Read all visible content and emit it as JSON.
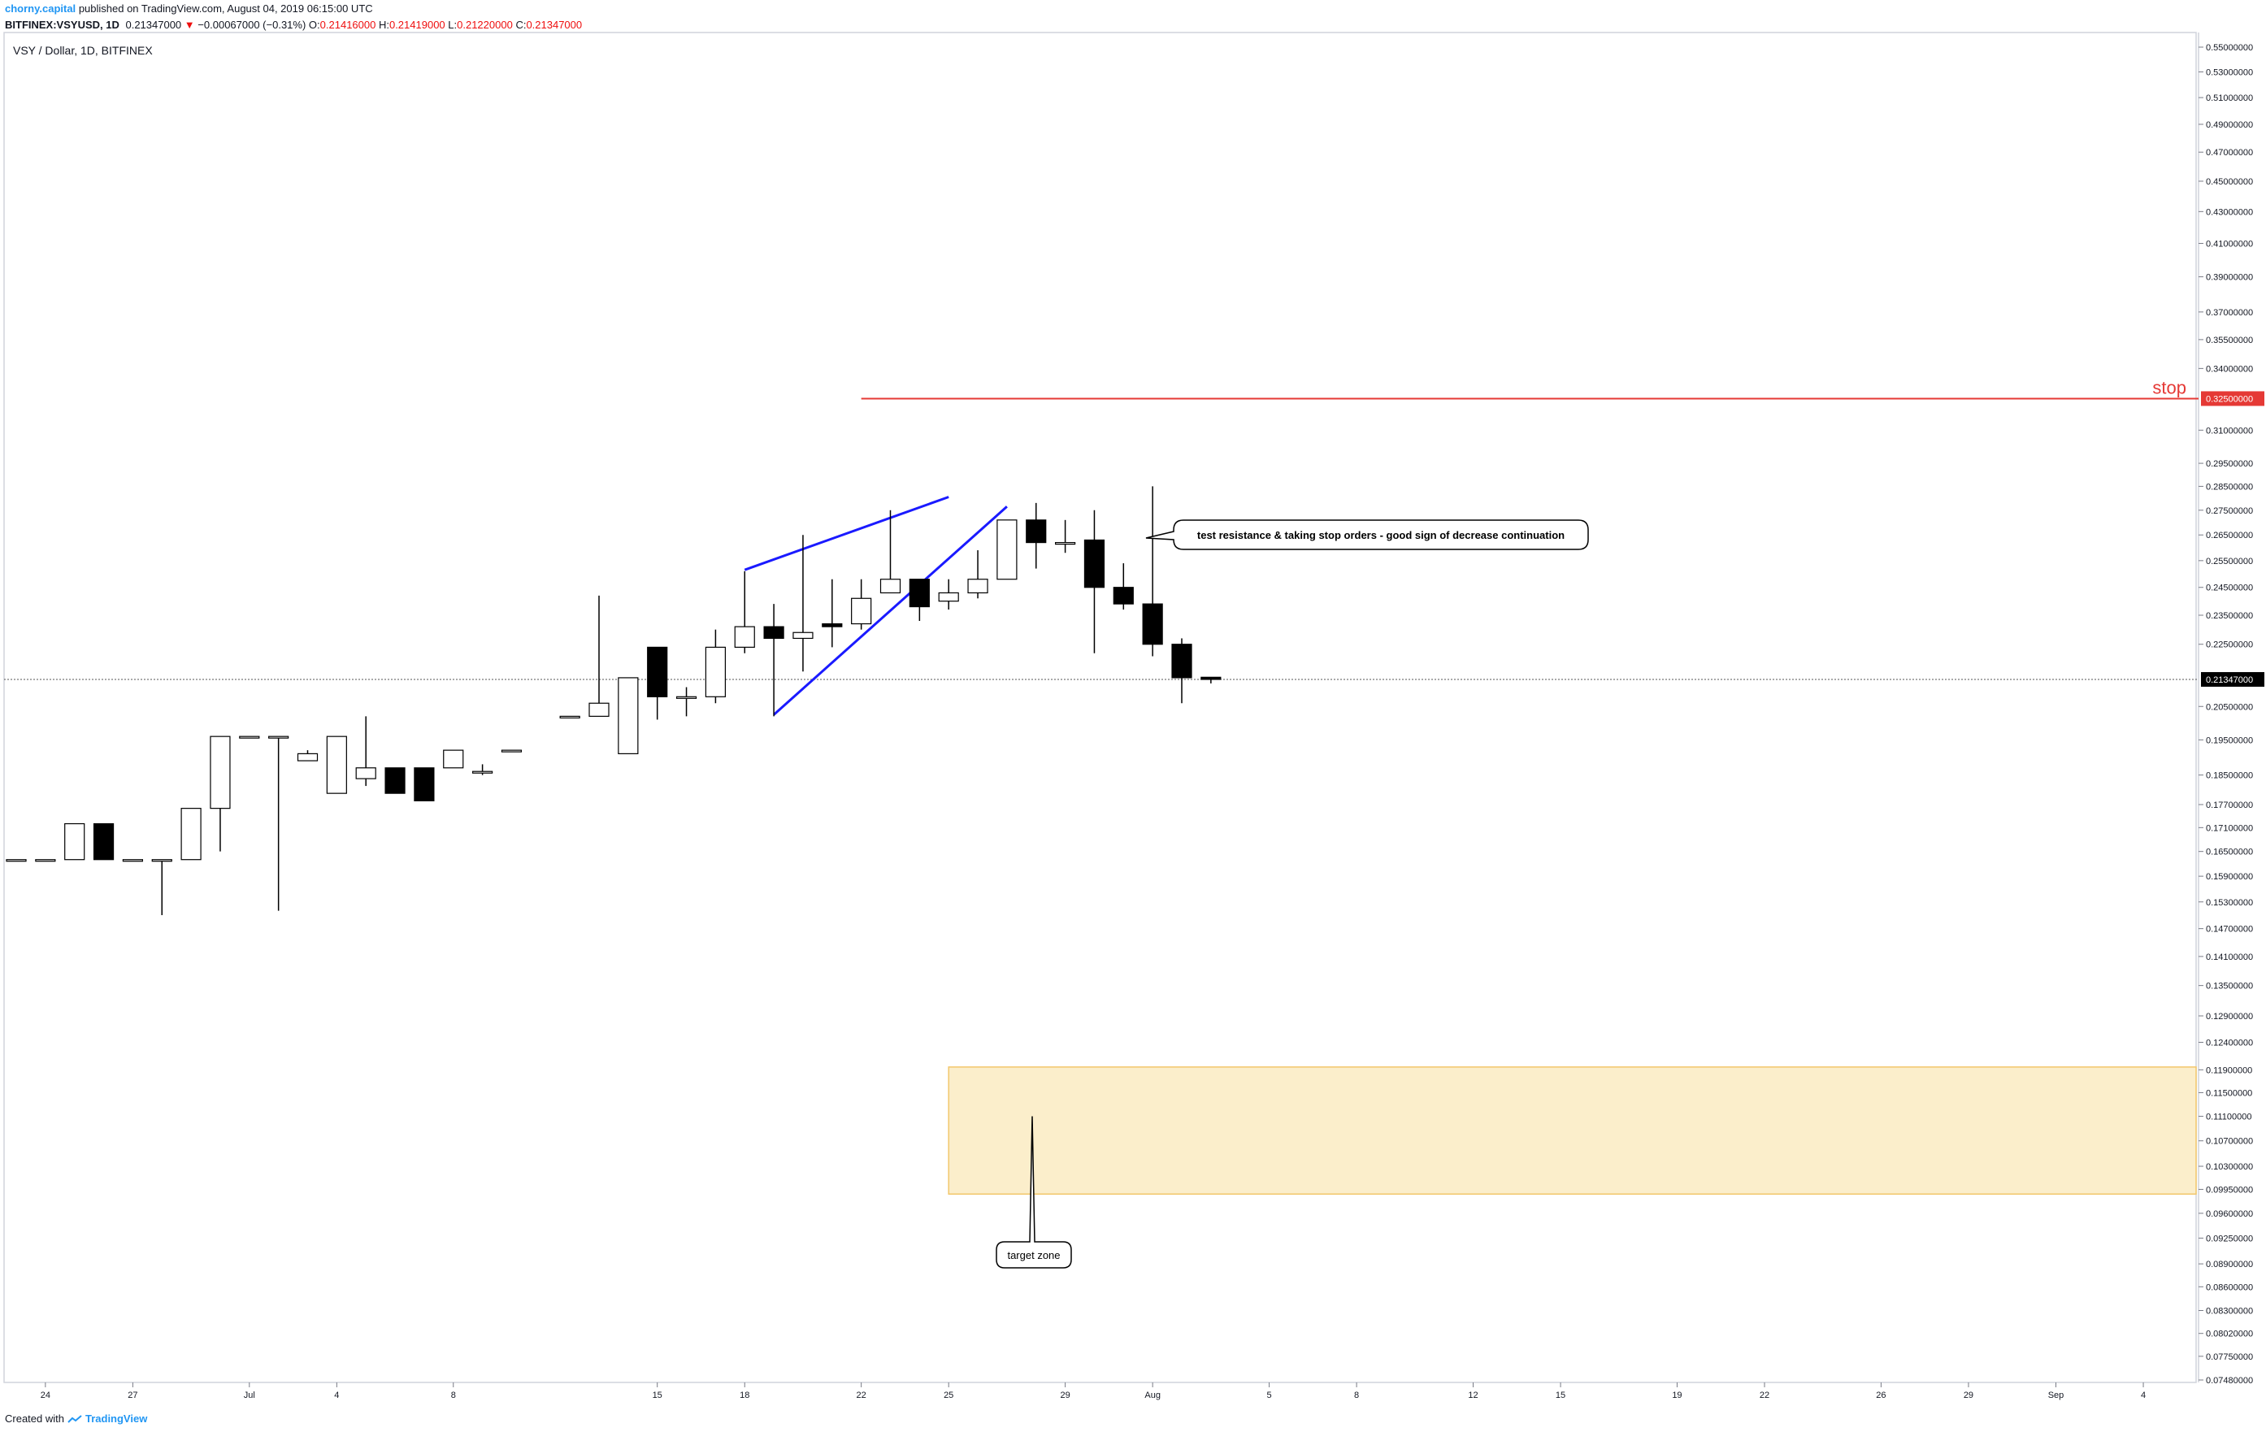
{
  "header": {
    "author": "chorny.capital",
    "published_text": "published on TradingView.com, August 04, 2019 06:15:00 UTC",
    "symbol": "BITFINEX:VSYUSD, 1D",
    "last": "0.21347000",
    "change_arrow": "▼",
    "change": "−0.00067000 (−0.31%)",
    "o_label": "O:",
    "o_value": "0.21416000",
    "h_label": "H:",
    "h_value": "0.21419000",
    "l_label": "L:",
    "l_value": "0.21220000",
    "c_label": "C:",
    "c_value": "0.21347000"
  },
  "footer": {
    "created_with": "Created with",
    "brand": "TradingView"
  },
  "colors": {
    "stop_line": "#e53935",
    "trend_line": "#1a1aff",
    "target_fill": "#fbeecb",
    "target_border": "#f2c76b",
    "price_tag_bg": "#000000"
  },
  "chart_data": {
    "type": "candlestick",
    "title": "VSY / Dollar, 1D, BITFINEX",
    "y_tick_labels": [
      "0.55000000",
      "0.53000000",
      "0.51000000",
      "0.49000000",
      "0.47000000",
      "0.45000000",
      "0.43000000",
      "0.41000000",
      "0.39000000",
      "0.37000000",
      "0.35500000",
      "0.34000000",
      "0.31000000",
      "0.29500000",
      "0.28500000",
      "0.27500000",
      "0.26500000",
      "0.25500000",
      "0.24500000",
      "0.23500000",
      "0.22500000",
      "0.20500000",
      "0.19500000",
      "0.18500000",
      "0.17700000",
      "0.17100000",
      "0.16500000",
      "0.15900000",
      "0.15300000",
      "0.14700000",
      "0.14100000",
      "0.13500000",
      "0.12900000",
      "0.12400000",
      "0.11900000",
      "0.11500000",
      "0.11100000",
      "0.10700000",
      "0.10300000",
      "0.09950000",
      "0.09600000",
      "0.09250000",
      "0.08900000",
      "0.08600000",
      "0.08300000",
      "0.08020000",
      "0.07750000",
      "0.07480000"
    ],
    "x_tick_labels": [
      "24",
      "27",
      "Jul",
      "4",
      "8",
      "15",
      "18",
      "22",
      "25",
      "29",
      "Aug",
      "5",
      "8",
      "12",
      "15",
      "19",
      "22",
      "26",
      "29",
      "Sep",
      "4"
    ],
    "y_scale": "log",
    "ylim": [
      0.0748,
      0.55
    ],
    "candles": [
      {
        "date": "2019-06-23",
        "o": 0.163,
        "h": 0.163,
        "l": 0.163,
        "c": 0.163
      },
      {
        "date": "2019-06-24",
        "o": 0.163,
        "h": 0.163,
        "l": 0.163,
        "c": 0.163
      },
      {
        "date": "2019-06-25",
        "o": 0.163,
        "h": 0.172,
        "l": 0.163,
        "c": 0.172
      },
      {
        "date": "2019-06-26",
        "o": 0.172,
        "h": 0.172,
        "l": 0.163,
        "c": 0.163
      },
      {
        "date": "2019-06-27",
        "o": 0.163,
        "h": 0.163,
        "l": 0.163,
        "c": 0.163
      },
      {
        "date": "2019-06-28",
        "o": 0.163,
        "h": 0.163,
        "l": 0.15,
        "c": 0.163
      },
      {
        "date": "2019-06-29",
        "o": 0.163,
        "h": 0.176,
        "l": 0.163,
        "c": 0.176
      },
      {
        "date": "2019-06-30",
        "o": 0.176,
        "h": 0.196,
        "l": 0.165,
        "c": 0.196
      },
      {
        "date": "2019-07-01",
        "o": 0.196,
        "h": 0.196,
        "l": 0.196,
        "c": 0.196
      },
      {
        "date": "2019-07-02",
        "o": 0.196,
        "h": 0.196,
        "l": 0.151,
        "c": 0.196
      },
      {
        "date": "2019-07-03",
        "o": 0.189,
        "h": 0.192,
        "l": 0.189,
        "c": 0.191
      },
      {
        "date": "2019-07-04",
        "o": 0.18,
        "h": 0.196,
        "l": 0.18,
        "c": 0.196
      },
      {
        "date": "2019-07-05",
        "o": 0.184,
        "h": 0.202,
        "l": 0.182,
        "c": 0.187
      },
      {
        "date": "2019-07-06",
        "o": 0.187,
        "h": 0.187,
        "l": 0.18,
        "c": 0.18
      },
      {
        "date": "2019-07-07",
        "o": 0.187,
        "h": 0.187,
        "l": 0.178,
        "c": 0.178
      },
      {
        "date": "2019-07-08",
        "o": 0.187,
        "h": 0.192,
        "l": 0.187,
        "c": 0.192
      },
      {
        "date": "2019-07-09",
        "o": 0.186,
        "h": 0.188,
        "l": 0.185,
        "c": 0.186
      },
      {
        "date": "2019-07-10",
        "o": 0.192,
        "h": 0.192,
        "l": 0.192,
        "c": 0.192
      },
      {
        "date": "2019-07-12",
        "o": 0.202,
        "h": 0.202,
        "l": 0.202,
        "c": 0.202
      },
      {
        "date": "2019-07-13",
        "o": 0.202,
        "h": 0.242,
        "l": 0.202,
        "c": 0.206
      },
      {
        "date": "2019-07-14",
        "o": 0.191,
        "h": 0.214,
        "l": 0.191,
        "c": 0.214
      },
      {
        "date": "2019-07-15",
        "o": 0.224,
        "h": 0.224,
        "l": 0.201,
        "c": 0.208
      },
      {
        "date": "2019-07-16",
        "o": 0.208,
        "h": 0.211,
        "l": 0.202,
        "c": 0.208
      },
      {
        "date": "2019-07-17",
        "o": 0.208,
        "h": 0.23,
        "l": 0.206,
        "c": 0.224
      },
      {
        "date": "2019-07-18",
        "o": 0.224,
        "h": 0.251,
        "l": 0.222,
        "c": 0.231
      },
      {
        "date": "2019-07-19",
        "o": 0.231,
        "h": 0.239,
        "l": 0.202,
        "c": 0.227
      },
      {
        "date": "2019-07-20",
        "o": 0.227,
        "h": 0.265,
        "l": 0.216,
        "c": 0.229
      },
      {
        "date": "2019-07-21",
        "o": 0.232,
        "h": 0.248,
        "l": 0.224,
        "c": 0.231
      },
      {
        "date": "2019-07-22",
        "o": 0.232,
        "h": 0.248,
        "l": 0.23,
        "c": 0.241
      },
      {
        "date": "2019-07-23",
        "o": 0.243,
        "h": 0.275,
        "l": 0.243,
        "c": 0.248
      },
      {
        "date": "2019-07-24",
        "o": 0.248,
        "h": 0.248,
        "l": 0.233,
        "c": 0.238
      },
      {
        "date": "2019-07-25",
        "o": 0.24,
        "h": 0.248,
        "l": 0.237,
        "c": 0.243
      },
      {
        "date": "2019-07-26",
        "o": 0.243,
        "h": 0.259,
        "l": 0.241,
        "c": 0.248
      },
      {
        "date": "2019-07-27",
        "o": 0.248,
        "h": 0.271,
        "l": 0.248,
        "c": 0.271
      },
      {
        "date": "2019-07-28",
        "o": 0.271,
        "h": 0.278,
        "l": 0.252,
        "c": 0.262
      },
      {
        "date": "2019-07-29",
        "o": 0.262,
        "h": 0.271,
        "l": 0.258,
        "c": 0.262
      },
      {
        "date": "2019-07-30",
        "o": 0.263,
        "h": 0.275,
        "l": 0.222,
        "c": 0.245
      },
      {
        "date": "2019-07-31",
        "o": 0.245,
        "h": 0.254,
        "l": 0.237,
        "c": 0.239
      },
      {
        "date": "2019-08-01",
        "o": 0.239,
        "h": 0.285,
        "l": 0.221,
        "c": 0.225
      },
      {
        "date": "2019-08-02",
        "o": 0.225,
        "h": 0.227,
        "l": 0.206,
        "c": 0.214
      },
      {
        "date": "2019-08-03",
        "o": 0.21416,
        "h": 0.21419,
        "l": 0.2122,
        "c": 0.21347
      }
    ],
    "current_price_label": "0.21347000",
    "stop": {
      "price_label": "0.32500000",
      "text": "stop"
    },
    "target_zone": {
      "from": 0.0988,
      "to": 0.1195,
      "label": "target zone"
    },
    "annotations": [
      {
        "text": "test resistance & taking stop orders - good sign of decrease continuation"
      }
    ]
  }
}
